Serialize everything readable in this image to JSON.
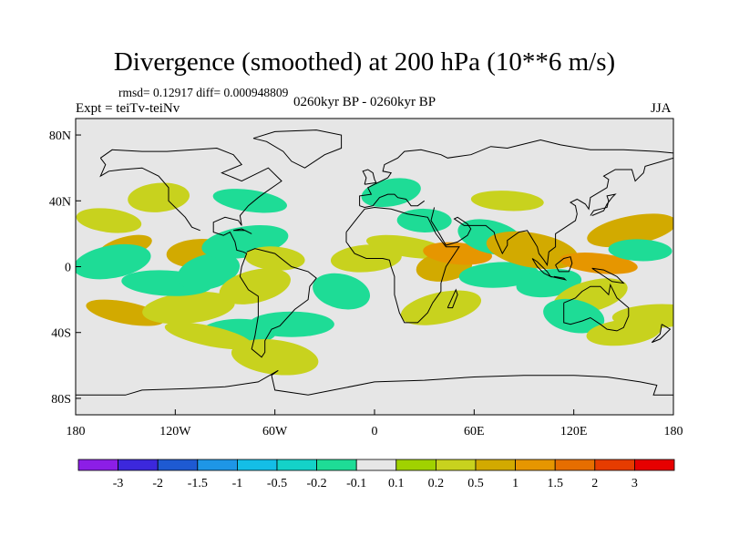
{
  "header": {
    "title": "Divergence (smoothed) at 200 hPa (10**6 m/s)",
    "stats": "rmsd= 0.12917 diff= 0.000948809",
    "experiment": "Expt = teiTv-teiNv",
    "period": "0260kyr BP - 0260kyr BP",
    "season": "JJA"
  },
  "chart_data": {
    "type": "heatmap",
    "title": "Divergence (smoothed) at 200 hPa (10**6 m/s)",
    "xlabel": "",
    "ylabel": "",
    "xlim": [
      -180,
      180
    ],
    "ylim": [
      -90,
      90
    ],
    "x_ticks": [
      {
        "value": -180,
        "label": "180"
      },
      {
        "value": -120,
        "label": "120W"
      },
      {
        "value": -60,
        "label": "60W"
      },
      {
        "value": 0,
        "label": "0"
      },
      {
        "value": 60,
        "label": "60E"
      },
      {
        "value": 120,
        "label": "120E"
      },
      {
        "value": 180,
        "label": "180"
      }
    ],
    "y_ticks": [
      {
        "value": 80,
        "label": "80N"
      },
      {
        "value": 40,
        "label": "40N"
      },
      {
        "value": 0,
        "label": "0"
      },
      {
        "value": -40,
        "label": "40S"
      },
      {
        "value": -80,
        "label": "80S"
      }
    ],
    "colorbar": {
      "colors": [
        "#8c1ee6",
        "#3c28dc",
        "#1e5ad2",
        "#1e96e6",
        "#14bee6",
        "#14d2c8",
        "#1edc96",
        "#e6e6e6",
        "#a0d200",
        "#c8d21e",
        "#d2aa00",
        "#e69600",
        "#e66e00",
        "#e63c00",
        "#e60000"
      ],
      "labels": [
        "-3",
        "-2",
        "-1.5",
        "-1",
        "-0.5",
        "-0.2",
        "-0.1",
        "0.1",
        "0.2",
        "0.5",
        "1",
        "1.5",
        "2",
        "3"
      ]
    },
    "fields": [
      {
        "lon": -150,
        "lat": 12,
        "value": 0.5
      },
      {
        "lon": -105,
        "lat": 8,
        "value": 0.5
      },
      {
        "lon": -150,
        "lat": -28,
        "value": 0.5
      },
      {
        "lon": -112,
        "lat": -25,
        "value": 0.2
      },
      {
        "lon": -160,
        "lat": 28,
        "value": 0.2
      },
      {
        "lon": -158,
        "lat": 3,
        "value": -0.2
      },
      {
        "lon": -125,
        "lat": -10,
        "value": -0.2
      },
      {
        "lon": -100,
        "lat": -3,
        "value": -0.2
      },
      {
        "lon": -82,
        "lat": -40,
        "value": -0.2
      },
      {
        "lon": -100,
        "lat": -42,
        "value": 0.2
      },
      {
        "lon": -130,
        "lat": 42,
        "value": 0.2
      },
      {
        "lon": -75,
        "lat": 40,
        "value": -0.2
      },
      {
        "lon": -78,
        "lat": 15,
        "value": -0.2
      },
      {
        "lon": -60,
        "lat": 5,
        "value": 0.2
      },
      {
        "lon": -72,
        "lat": -12,
        "value": 0.2
      },
      {
        "lon": -50,
        "lat": -35,
        "value": -0.2
      },
      {
        "lon": -20,
        "lat": -15,
        "value": -0.2
      },
      {
        "lon": -5,
        "lat": 5,
        "value": 0.2
      },
      {
        "lon": 20,
        "lat": 12,
        "value": 0.2
      },
      {
        "lon": 42,
        "lat": 0,
        "value": 0.5
      },
      {
        "lon": 50,
        "lat": 8,
        "value": 1
      },
      {
        "lon": 40,
        "lat": -25,
        "value": 0.2
      },
      {
        "lon": 30,
        "lat": 28,
        "value": -0.2
      },
      {
        "lon": 70,
        "lat": 18,
        "value": -0.2
      },
      {
        "lon": 75,
        "lat": -5,
        "value": -0.2
      },
      {
        "lon": 95,
        "lat": 10,
        "value": 0.5
      },
      {
        "lon": 105,
        "lat": -10,
        "value": -0.2
      },
      {
        "lon": 135,
        "lat": 2,
        "value": 1
      },
      {
        "lon": 155,
        "lat": 22,
        "value": 0.5
      },
      {
        "lon": 160,
        "lat": 10,
        "value": -0.2
      },
      {
        "lon": 130,
        "lat": -18,
        "value": 0.2
      },
      {
        "lon": 170,
        "lat": -30,
        "value": 0.2
      },
      {
        "lon": 120,
        "lat": -30,
        "value": -0.2
      },
      {
        "lon": 150,
        "lat": -40,
        "value": 0.2
      },
      {
        "lon": -60,
        "lat": -55,
        "value": 0.2
      },
      {
        "lon": 10,
        "lat": 45,
        "value": -0.2
      },
      {
        "lon": 80,
        "lat": 40,
        "value": 0.2
      }
    ]
  }
}
